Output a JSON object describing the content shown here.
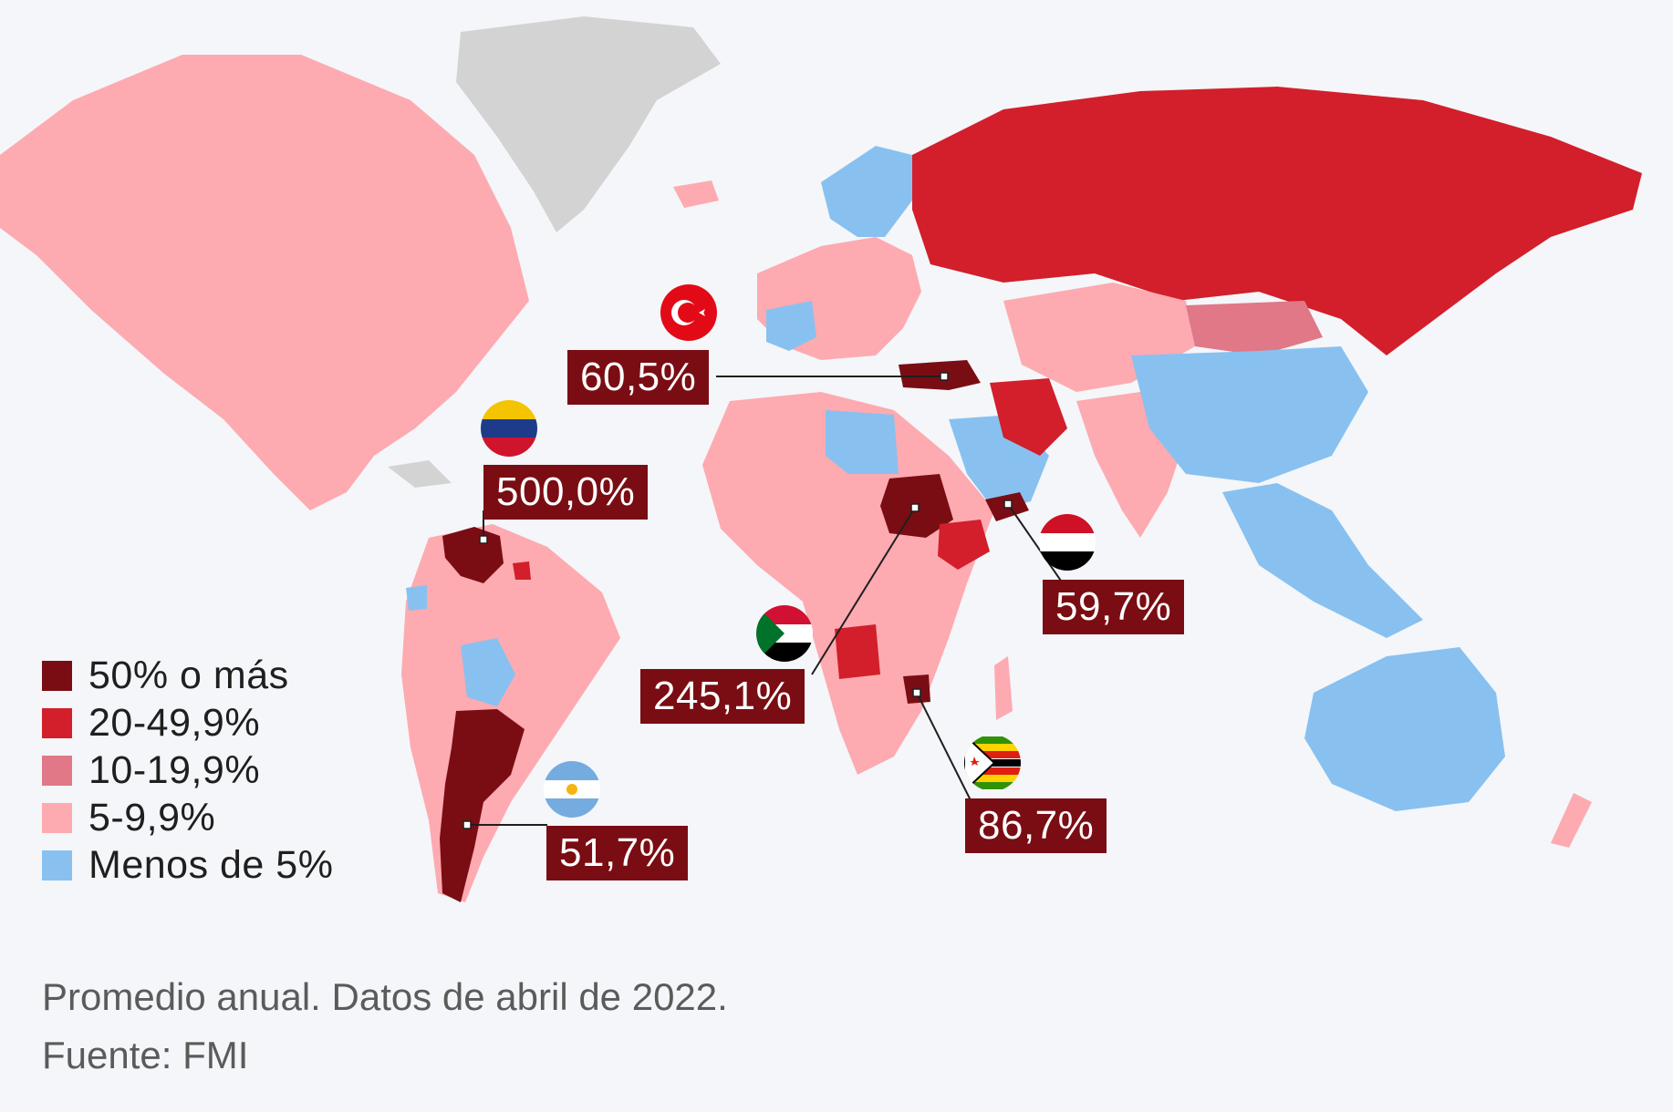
{
  "legend": {
    "items": [
      {
        "label": "50% o más",
        "color": "#7a0d13"
      },
      {
        "label": "20-49,9%",
        "color": "#d21f2b"
      },
      {
        "label": "10-19,9%",
        "color": "#e07887"
      },
      {
        "label": "5-9,9%",
        "color": "#fdaab1"
      },
      {
        "label": "Menos de 5%",
        "color": "#88c1f0"
      }
    ],
    "no_data_color": "#d3d3d3"
  },
  "callouts": [
    {
      "country_flag": "venezuela-flag-icon",
      "value": "500,0%"
    },
    {
      "country_flag": "sudan-flag-icon",
      "value": "245,1%"
    },
    {
      "country_flag": "zimbabwe-flag-icon",
      "value": "86,7%"
    },
    {
      "country_flag": "turkey-flag-icon",
      "value": "60,5%"
    },
    {
      "country_flag": "yemen-flag-icon",
      "value": "59,7%"
    },
    {
      "country_flag": "argentina-flag-icon",
      "value": "51,7%"
    }
  ],
  "footnote": {
    "note": "Promedio anual. Datos de abril de 2022.",
    "source": "Fuente: FMI"
  }
}
